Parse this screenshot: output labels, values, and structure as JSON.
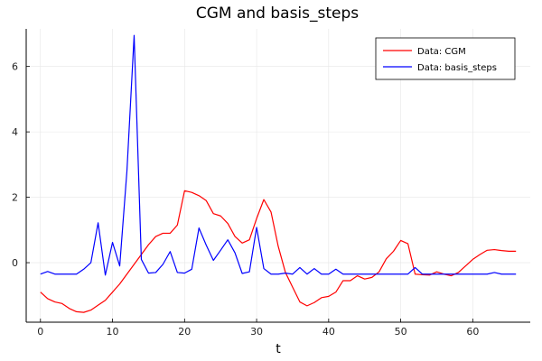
{
  "chart_data": {
    "type": "line",
    "title": "CGM and basis_steps",
    "xlabel": "t",
    "ylabel": "",
    "xlim": [
      -1.98,
      67.98
    ],
    "ylim": [
      -1.82,
      7.15
    ],
    "xticks": [
      0,
      10,
      20,
      30,
      40,
      50,
      60
    ],
    "yticks": [
      0,
      2,
      4,
      6
    ],
    "grid": true,
    "legend_position": "top-right",
    "series": [
      {
        "name": "Data: CGM",
        "color": "#ff0000",
        "x": [
          0,
          1,
          2,
          3,
          4,
          5,
          6,
          7,
          8,
          9,
          10,
          11,
          12,
          13,
          14,
          15,
          16,
          17,
          18,
          19,
          20,
          21,
          22,
          23,
          24,
          25,
          26,
          27,
          28,
          29,
          30,
          31,
          32,
          33,
          34,
          35,
          36,
          37,
          38,
          39,
          40,
          41,
          42,
          43,
          44,
          45,
          46,
          47,
          48,
          49,
          50,
          51,
          52,
          53,
          54,
          55,
          56,
          57,
          58,
          59,
          60,
          61,
          62,
          63,
          64,
          65,
          66
        ],
        "y": [
          -0.9,
          -1.1,
          -1.2,
          -1.25,
          -1.4,
          -1.5,
          -1.52,
          -1.45,
          -1.3,
          -1.15,
          -0.9,
          -0.65,
          -0.35,
          -0.05,
          0.25,
          0.55,
          0.8,
          0.9,
          0.9,
          1.15,
          2.2,
          2.15,
          2.05,
          1.9,
          1.5,
          1.43,
          1.2,
          0.8,
          0.6,
          0.7,
          1.35,
          1.93,
          1.55,
          0.5,
          -0.3,
          -0.75,
          -1.2,
          -1.32,
          -1.22,
          -1.07,
          -1.03,
          -0.9,
          -0.55,
          -0.55,
          -0.4,
          -0.5,
          -0.45,
          -0.28,
          0.12,
          0.35,
          0.68,
          0.58,
          -0.35,
          -0.37,
          -0.38,
          -0.28,
          -0.35,
          -0.4,
          -0.3,
          -0.1,
          0.1,
          0.25,
          0.38,
          0.4,
          0.37,
          0.35,
          0.35
        ]
      },
      {
        "name": "Data: basis_steps",
        "color": "#0000ff",
        "x": [
          0,
          1,
          2,
          3,
          4,
          5,
          6,
          7,
          8,
          9,
          10,
          11,
          12,
          13,
          14,
          15,
          16,
          17,
          18,
          19,
          20,
          21,
          22,
          23,
          24,
          25,
          26,
          27,
          28,
          29,
          30,
          31,
          32,
          33,
          34,
          35,
          36,
          37,
          38,
          39,
          40,
          41,
          42,
          43,
          44,
          45,
          46,
          47,
          48,
          49,
          50,
          51,
          52,
          53,
          54,
          55,
          56,
          57,
          58,
          59,
          60,
          61,
          62,
          63,
          64,
          65,
          66
        ],
        "y": [
          -0.35,
          -0.27,
          -0.35,
          -0.35,
          -0.35,
          -0.35,
          -0.2,
          0.0,
          1.22,
          -0.38,
          0.62,
          -0.1,
          2.8,
          6.95,
          0.1,
          -0.32,
          -0.3,
          -0.05,
          0.34,
          -0.3,
          -0.32,
          -0.2,
          1.06,
          0.54,
          0.07,
          0.38,
          0.7,
          0.3,
          -0.33,
          -0.28,
          1.08,
          -0.18,
          -0.35,
          -0.35,
          -0.32,
          -0.35,
          -0.15,
          -0.35,
          -0.18,
          -0.35,
          -0.35,
          -0.2,
          -0.35,
          -0.35,
          -0.35,
          -0.35,
          -0.35,
          -0.35,
          -0.35,
          -0.35,
          -0.35,
          -0.35,
          -0.15,
          -0.35,
          -0.35,
          -0.35,
          -0.35,
          -0.35,
          -0.35,
          -0.35,
          -0.35,
          -0.35,
          -0.35,
          -0.3,
          -0.35,
          -0.35,
          -0.35
        ]
      }
    ]
  }
}
